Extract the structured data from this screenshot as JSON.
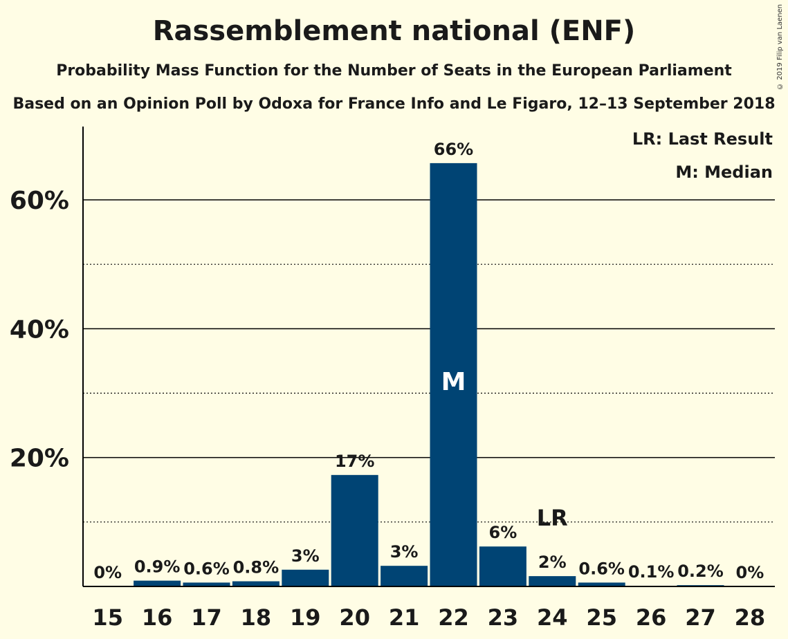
{
  "title": "Rassemblement national (ENF)",
  "subtitle": "Probability Mass Function for the Number of Seats in the European Parliament",
  "source": "Based on an Opinion Poll by Odoxa for France Info and Le Figaro, 12–13 September 2018",
  "copyright": "© 2019 Filip van Laenen",
  "legend": {
    "last_result": "LR: Last Result",
    "median": "M: Median"
  },
  "colors": {
    "bar": "#004474",
    "background": "#fffde5"
  },
  "chart_data": {
    "type": "bar",
    "categories": [
      "15",
      "16",
      "17",
      "18",
      "19",
      "20",
      "21",
      "22",
      "23",
      "24",
      "25",
      "26",
      "27",
      "28"
    ],
    "values": [
      0,
      0.9,
      0.6,
      0.8,
      2.6,
      17.3,
      3.2,
      65.7,
      6.2,
      1.6,
      0.6,
      0.1,
      0.2,
      0
    ],
    "labels": [
      "0%",
      "0.9%",
      "0.6%",
      "0.8%",
      "3%",
      "17%",
      "3%",
      "66%",
      "6%",
      "2%",
      "0.6%",
      "0.1%",
      "0.2%",
      "0%"
    ],
    "ylim": [
      0,
      70
    ],
    "yticks": [
      {
        "value": 20,
        "label": "20%"
      },
      {
        "value": 40,
        "label": "40%"
      },
      {
        "value": 60,
        "label": "60%"
      }
    ],
    "minor_gridlines": [
      10,
      30,
      50
    ],
    "median_category": "22",
    "median_marker": "M",
    "last_result_category": "24",
    "last_result_marker": "LR",
    "legend_position": "top-right"
  }
}
